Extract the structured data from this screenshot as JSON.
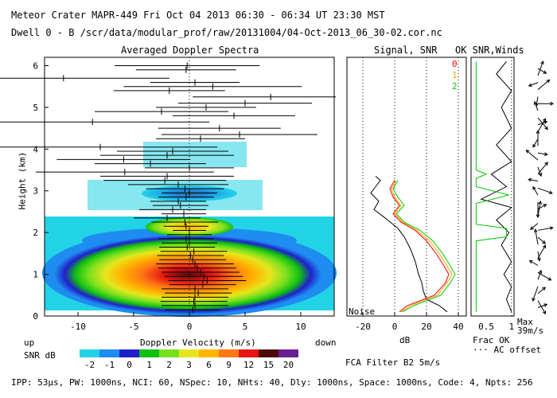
{
  "header": {
    "line1": "Meteor Crater  MAPR-449  Fri Oct 04 2013 06:30 - 06:34 UT 23:30 MST",
    "line2": "Dwell  0 -  B   /scr/data/modular_prof/raw/20131004/04-Oct-2013_06_30-02.cor.nc"
  },
  "panels": {
    "spectra_title": "Averaged Doppler Spectra",
    "snr_title": "Signal, SNR",
    "ok_title": "OK SNR,Winds",
    "y_label": "Height (km)",
    "x_label": "Doppler Velocity (m/s)",
    "x_left_note": "up",
    "x_right_note": "down",
    "noise_label": "Noise",
    "db_label": "dB",
    "frac_label": "Frac OK",
    "ac_label": "··· AC offset",
    "max_label": "Max",
    "max_value": "39m/s",
    "filter_label": "FCA Filter B2  5m/s"
  },
  "colorbar": {
    "label": "SNR dB",
    "ticks": [
      "-2",
      "-1",
      "0",
      "1",
      "2",
      "3",
      "6",
      "9",
      "12",
      "15",
      "20"
    ],
    "colors": [
      "#22d3e6",
      "#1e8cf0",
      "#2020c8",
      "#10c010",
      "#7ae01e",
      "#e6e61e",
      "#ffb400",
      "#ff7814",
      "#e61414",
      "#500a0a",
      "#6a1e96"
    ]
  },
  "footer": "IPP: 53μs,  PW: 1000ns,  NCI: 60,  NSpec: 10, NHts: 40,  Dly: 1000ns,  Space: 1000ns,  Code: 4,  Npts: 256",
  "legend": [
    {
      "label": "0",
      "color": "#ff0000"
    },
    {
      "label": "1",
      "color": "#ffa500"
    },
    {
      "label": "2",
      "color": "#00c800"
    }
  ],
  "chart_data": {
    "type": "heatmap",
    "title": "Averaged Doppler Spectra",
    "xlabel": "Doppler Velocity (m/s)",
    "ylabel": "Height (km)",
    "xlim": [
      -13,
      13
    ],
    "ylim": [
      0,
      6.2
    ],
    "xticks": [
      -10,
      -5,
      0,
      5,
      10
    ],
    "yticks": [
      0,
      1,
      2,
      3,
      4,
      5,
      6
    ],
    "snr_xlim": [
      -30,
      45
    ],
    "snr_xticks": [
      -20,
      0,
      20,
      40
    ],
    "frac_xticks": [
      "0.5",
      "1"
    ],
    "error_bars": [
      {
        "h": 6.0,
        "c": -0.2,
        "w": 6.5
      },
      {
        "h": 5.9,
        "c": -0.3,
        "w": 4.5
      },
      {
        "h": 5.7,
        "c": -11.3,
        "w": 9.5
      },
      {
        "h": 5.6,
        "c": 0.5,
        "w": 4.0
      },
      {
        "h": 5.5,
        "c": 2.1,
        "w": 8.0
      },
      {
        "h": 5.4,
        "c": -1.8,
        "w": 5.0
      },
      {
        "h": 5.25,
        "c": 7.3,
        "w": 7.0
      },
      {
        "h": 5.1,
        "c": 5.0,
        "w": 6.0
      },
      {
        "h": 5.0,
        "c": 1.5,
        "w": 4.5
      },
      {
        "h": 4.9,
        "c": -2.5,
        "w": 6.0
      },
      {
        "h": 4.8,
        "c": 4.0,
        "w": 5.5
      },
      {
        "h": 4.65,
        "c": -8.7,
        "w": 10.5
      },
      {
        "h": 4.5,
        "c": 2.7,
        "w": 5.5
      },
      {
        "h": 4.35,
        "c": 4.5,
        "w": 7.0
      },
      {
        "h": 4.25,
        "c": 1.0,
        "w": 4.0
      },
      {
        "h": 4.05,
        "c": -8.0,
        "w": 10.5
      },
      {
        "h": 3.95,
        "c": -1.5,
        "w": 5.0
      },
      {
        "h": 3.85,
        "c": -2.0,
        "w": 6.0
      },
      {
        "h": 3.75,
        "c": -5.9,
        "w": 6.0
      },
      {
        "h": 3.65,
        "c": -3.5,
        "w": 5.0
      },
      {
        "h": 3.55,
        "c": 0.0,
        "w": 4.0
      },
      {
        "h": 3.45,
        "c": -5.8,
        "w": 8.0
      },
      {
        "h": 3.35,
        "c": -2.0,
        "w": 6.0
      },
      {
        "h": 3.25,
        "c": -2.2,
        "w": 5.5
      },
      {
        "h": 3.15,
        "c": -1.0,
        "w": 4.5
      },
      {
        "h": 3.05,
        "c": -0.4,
        "w": 3.5
      },
      {
        "h": 2.95,
        "c": 0.0,
        "w": 2.5
      },
      {
        "h": 2.85,
        "c": -0.3,
        "w": 2.5
      },
      {
        "h": 2.75,
        "c": -1.0,
        "w": 2.5
      },
      {
        "h": 2.65,
        "c": -0.8,
        "w": 2.5
      },
      {
        "h": 2.55,
        "c": -1.5,
        "w": 3.0
      },
      {
        "h": 2.45,
        "c": -0.5,
        "w": 2.0
      },
      {
        "h": 2.35,
        "c": -2.0,
        "w": 3.0
      },
      {
        "h": 2.25,
        "c": -0.4,
        "w": 3.0
      },
      {
        "h": 2.15,
        "c": -0.3,
        "w": 2.0
      },
      {
        "h": 2.05,
        "c": 0.0,
        "w": 1.5
      },
      {
        "h": 1.95,
        "c": 0.0,
        "w": 2.0
      },
      {
        "h": 1.85,
        "c": -0.3,
        "w": 2.5
      },
      {
        "h": 1.75,
        "c": 0.0,
        "w": 2.5
      },
      {
        "h": 1.65,
        "c": -0.2,
        "w": 2.5
      },
      {
        "h": 1.55,
        "c": 0.4,
        "w": 3.0
      },
      {
        "h": 1.45,
        "c": 0.1,
        "w": 3.0
      },
      {
        "h": 1.35,
        "c": 0.3,
        "w": 3.0
      },
      {
        "h": 1.25,
        "c": 0.5,
        "w": 3.5
      },
      {
        "h": 1.15,
        "c": 0.7,
        "w": 3.5
      },
      {
        "h": 1.05,
        "c": 1.0,
        "w": 3.5
      },
      {
        "h": 0.95,
        "c": 1.3,
        "w": 3.5
      },
      {
        "h": 0.85,
        "c": 1.6,
        "w": 3.5
      },
      {
        "h": 0.75,
        "c": 1.2,
        "w": 3.0
      },
      {
        "h": 0.65,
        "c": 0.5,
        "w": 3.0
      },
      {
        "h": 0.55,
        "c": 0.8,
        "w": 3.0
      },
      {
        "h": 0.45,
        "c": 0.5,
        "w": 3.0
      },
      {
        "h": 0.35,
        "c": 0.4,
        "w": 3.0
      },
      {
        "h": 0.25,
        "c": 0.5,
        "w": 3.0
      },
      {
        "h": 0.15,
        "c": 0.3,
        "w": 2.5
      }
    ],
    "snr_series": [
      {
        "name": "Signal (black)",
        "color": "#000000",
        "points": [
          [
            33,
            0.1
          ],
          [
            28,
            0.25
          ],
          [
            20,
            0.4
          ],
          [
            18,
            0.6
          ],
          [
            17,
            0.8
          ],
          [
            15,
            1.0
          ],
          [
            13,
            1.3
          ],
          [
            10,
            1.6
          ],
          [
            6,
            1.9
          ],
          [
            2,
            2.1
          ],
          [
            -6,
            2.35
          ],
          [
            -13,
            2.55
          ],
          [
            -10,
            2.75
          ],
          [
            -15,
            2.95
          ],
          [
            -12,
            3.1
          ],
          [
            -9,
            3.25
          ],
          [
            -12,
            3.35
          ]
        ]
      },
      {
        "name": "0",
        "color": "#ff0000",
        "points": [
          [
            3,
            0.1
          ],
          [
            8,
            0.25
          ],
          [
            25,
            0.5
          ],
          [
            32,
            0.8
          ],
          [
            34,
            1.0
          ],
          [
            31,
            1.2
          ],
          [
            26,
            1.5
          ],
          [
            20,
            1.8
          ],
          [
            13,
            2.05
          ],
          [
            4,
            2.25
          ],
          [
            -1,
            2.45
          ],
          [
            3,
            2.65
          ],
          [
            -1,
            2.85
          ],
          [
            -3,
            3.05
          ],
          [
            0,
            3.25
          ]
        ]
      },
      {
        "name": "1",
        "color": "#ffa500",
        "points": [
          [
            4,
            0.1
          ],
          [
            10,
            0.25
          ],
          [
            27,
            0.5
          ],
          [
            33,
            0.8
          ],
          [
            36,
            1.0
          ],
          [
            33,
            1.2
          ],
          [
            28,
            1.5
          ],
          [
            22,
            1.8
          ],
          [
            14,
            2.05
          ],
          [
            5,
            2.25
          ],
          [
            0,
            2.45
          ],
          [
            4,
            2.65
          ],
          [
            0,
            2.85
          ],
          [
            -2,
            3.05
          ],
          [
            1,
            3.25
          ]
        ]
      },
      {
        "name": "2",
        "color": "#00c800",
        "points": [
          [
            5,
            0.1
          ],
          [
            12,
            0.25
          ],
          [
            29,
            0.5
          ],
          [
            35,
            0.8
          ],
          [
            38,
            1.0
          ],
          [
            35,
            1.2
          ],
          [
            30,
            1.5
          ],
          [
            24,
            1.8
          ],
          [
            16,
            2.05
          ],
          [
            6,
            2.25
          ],
          [
            1,
            2.45
          ],
          [
            6,
            2.65
          ],
          [
            2,
            2.85
          ],
          [
            -1,
            3.05
          ],
          [
            2,
            3.25
          ]
        ]
      }
    ]
  }
}
